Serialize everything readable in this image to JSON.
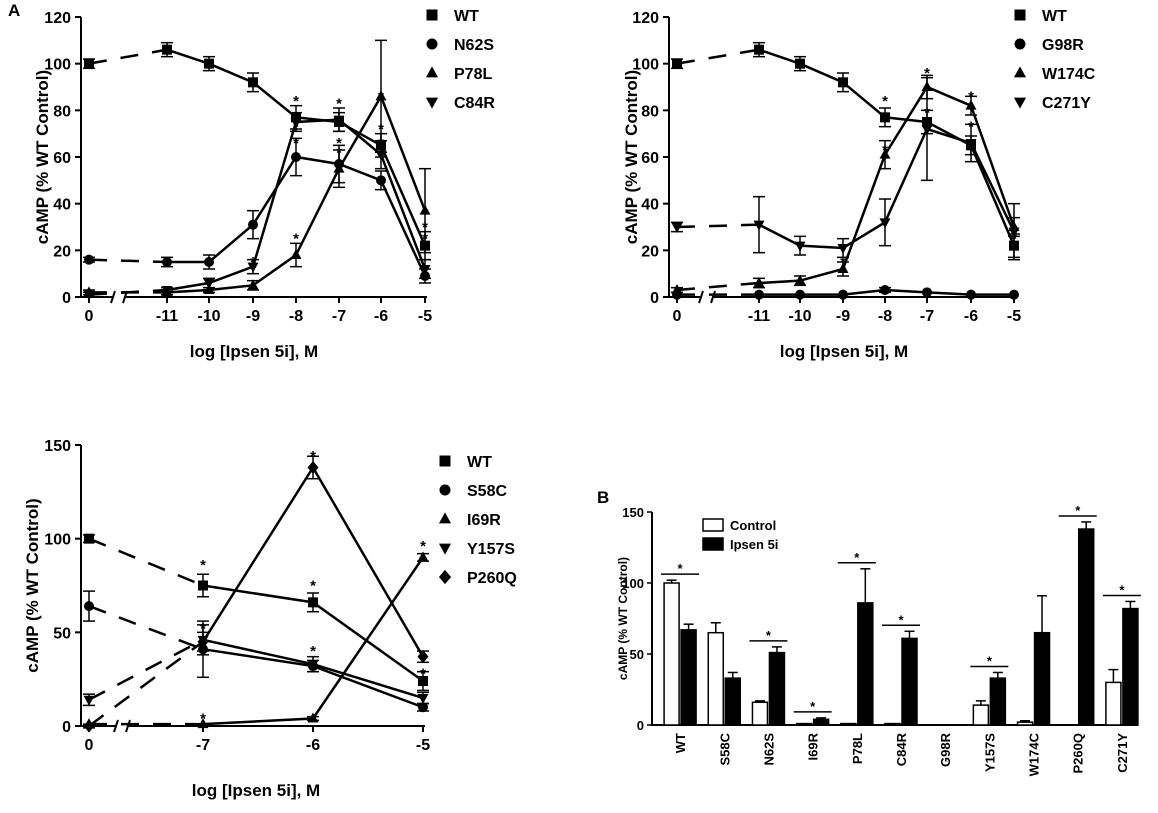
{
  "panel_labels": {
    "a": "A",
    "b": "B"
  },
  "legend_b": {
    "control": "Control",
    "treated": "Ipsen 5i"
  },
  "chart_data": [
    {
      "id": "panel-a-left",
      "type": "line",
      "ylabel": "cAMP (% WT Control)",
      "xlabel": "log [Ipsen 5i], M",
      "ylim": [
        0,
        120
      ],
      "yticks": [
        0,
        20,
        40,
        60,
        80,
        100,
        120
      ],
      "xticks": [
        "0",
        "-11",
        "-10",
        "-9",
        "-8",
        "-7",
        "-6",
        "-5"
      ],
      "series": [
        {
          "name": "WT",
          "marker": "square",
          "values": [
            100,
            106,
            100,
            92,
            77,
            75,
            65,
            22
          ],
          "err": [
            2,
            3,
            3,
            4,
            5,
            4,
            5,
            6
          ]
        },
        {
          "name": "N62S",
          "marker": "circle",
          "values": [
            16,
            15,
            15,
            31,
            60,
            57,
            50,
            9
          ],
          "err": [
            1,
            2,
            3,
            6,
            8,
            8,
            4,
            3
          ]
        },
        {
          "name": "P78L",
          "marker": "triangle-up",
          "values": [
            2,
            2,
            3,
            5,
            18,
            55,
            86,
            37
          ],
          "err": [
            1,
            1,
            1,
            2,
            5,
            8,
            24,
            18
          ]
        },
        {
          "name": "C84R",
          "marker": "triangle-down",
          "values": [
            1,
            3,
            6,
            13,
            75,
            76,
            61,
            12
          ],
          "err": [
            1,
            1,
            2,
            3,
            4,
            5,
            6,
            4
          ]
        }
      ],
      "stars": [
        [
          4,
          84
        ],
        [
          4,
          73
        ],
        [
          4,
          66
        ],
        [
          4,
          25
        ],
        [
          5,
          83
        ],
        [
          5,
          75
        ],
        [
          5,
          66
        ],
        [
          5,
          62
        ],
        [
          6,
          86
        ],
        [
          6,
          72
        ],
        [
          6,
          66
        ],
        [
          6,
          60
        ],
        [
          3,
          15
        ],
        [
          7,
          25
        ],
        [
          7,
          30
        ]
      ]
    },
    {
      "id": "panel-a-right",
      "type": "line",
      "ylabel": "cAMP (% WT Control)",
      "xlabel": "log [Ipsen 5i], M",
      "ylim": [
        0,
        120
      ],
      "yticks": [
        0,
        20,
        40,
        60,
        80,
        100,
        120
      ],
      "xticks": [
        "0",
        "-11",
        "-10",
        "-9",
        "-8",
        "-7",
        "-6",
        "-5"
      ],
      "series": [
        {
          "name": "WT",
          "marker": "square",
          "values": [
            100,
            106,
            100,
            92,
            77,
            75,
            65,
            22
          ],
          "err": [
            2,
            3,
            3,
            4,
            4,
            5,
            4,
            5
          ]
        },
        {
          "name": "G98R",
          "marker": "circle",
          "values": [
            1,
            1,
            1,
            1,
            3,
            2,
            1,
            1
          ],
          "err": [
            0.5,
            0.5,
            0.5,
            0.5,
            1,
            0.5,
            0.5,
            0.5
          ]
        },
        {
          "name": "W174C",
          "marker": "triangle-up",
          "values": [
            3,
            6,
            7,
            12,
            61,
            90,
            82,
            30
          ],
          "err": [
            1,
            2,
            2,
            3,
            6,
            5,
            4,
            4
          ]
        },
        {
          "name": "C271Y",
          "marker": "triangle-down",
          "values": [
            30,
            31,
            22,
            21,
            32,
            72,
            66,
            28
          ],
          "err": [
            2,
            12,
            4,
            4,
            10,
            22,
            8,
            12
          ]
        }
      ],
      "stars": [
        [
          4,
          84
        ],
        [
          4,
          63
        ],
        [
          5,
          96
        ],
        [
          5,
          79
        ],
        [
          6,
          86
        ],
        [
          6,
          73
        ],
        [
          3,
          15
        ],
        [
          7,
          25
        ]
      ]
    },
    {
      "id": "panel-a-bottom",
      "type": "line",
      "ylabel": "cAMP (% WT Control)",
      "xlabel": "log [Ipsen 5i], M",
      "ylim": [
        0,
        150
      ],
      "yticks": [
        0,
        50,
        100,
        150
      ],
      "xticks": [
        "0",
        "-7",
        "-6",
        "-5"
      ],
      "series": [
        {
          "name": "WT",
          "marker": "square",
          "values": [
            100,
            75,
            66,
            24
          ],
          "err": [
            2,
            6,
            5,
            5
          ]
        },
        {
          "name": "S58C",
          "marker": "circle",
          "values": [
            64,
            41,
            32,
            10
          ],
          "err": [
            8,
            15,
            3,
            2
          ]
        },
        {
          "name": "I69R",
          "marker": "triangle-up",
          "values": [
            1,
            1,
            4,
            90
          ],
          "err": [
            0.5,
            0.5,
            1,
            2
          ]
        },
        {
          "name": "Y157S",
          "marker": "triangle-down",
          "values": [
            14,
            46,
            33,
            15
          ],
          "err": [
            3,
            8,
            4,
            3
          ]
        },
        {
          "name": "P260Q",
          "marker": "diamond",
          "values": [
            0,
            45,
            138,
            37
          ],
          "err": [
            1,
            5,
            6,
            3
          ]
        }
      ],
      "stars": [
        [
          1,
          86
        ],
        [
          1,
          52
        ],
        [
          1,
          4
        ],
        [
          2,
          144
        ],
        [
          2,
          75
        ],
        [
          2,
          40
        ],
        [
          3,
          96
        ],
        [
          3,
          28
        ]
      ]
    },
    {
      "id": "panel-b",
      "type": "bar",
      "ylabel": "cAMP (% WT Control)",
      "ylim": [
        0,
        150
      ],
      "yticks": [
        0,
        50,
        100,
        150
      ],
      "categories": [
        "WT",
        "S58C",
        "N62S",
        "I69R",
        "P78L",
        "C84R",
        "G98R",
        "Y157S",
        "W174C",
        "P260Q",
        "C271Y"
      ],
      "series": [
        {
          "name": "Control",
          "values": [
            100,
            65,
            16,
            1,
            1,
            1,
            0,
            14,
            2,
            0,
            30
          ],
          "err": [
            2,
            7,
            1,
            0.5,
            0.5,
            0.5,
            0,
            3,
            1,
            0,
            9
          ]
        },
        {
          "name": "Ipsen 5i",
          "values": [
            67,
            33,
            51,
            4,
            86,
            61,
            0,
            33,
            65,
            138,
            82
          ],
          "err": [
            4,
            4,
            4,
            1,
            24,
            5,
            0,
            4,
            26,
            5,
            5
          ]
        }
      ],
      "significance": [
        "WT",
        "N62S",
        "I69R",
        "P78L",
        "C84R",
        "Y157S",
        "P260Q",
        "C271Y"
      ]
    }
  ]
}
